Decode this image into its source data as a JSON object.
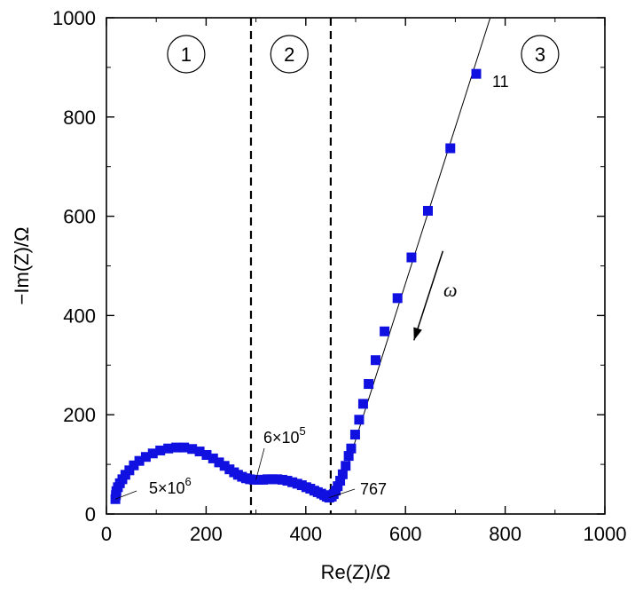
{
  "chart_data": {
    "type": "scatter",
    "xlabel": "Re(Z)/Ω",
    "ylabel": "−Im(Z)/Ω",
    "xlim": [
      0,
      1000
    ],
    "ylim": [
      0,
      1000
    ],
    "xticks": [
      0,
      200,
      400,
      600,
      800,
      1000
    ],
    "yticks": [
      0,
      200,
      400,
      600,
      800,
      1000
    ],
    "grid": false,
    "marker_color": "#1010e0",
    "series": [
      {
        "values": [
          [
            18,
            30
          ],
          [
            19,
            38
          ],
          [
            20,
            46
          ],
          [
            23,
            54
          ],
          [
            27,
            62
          ],
          [
            32,
            70
          ],
          [
            38,
            79
          ],
          [
            46,
            88
          ],
          [
            55,
            98
          ],
          [
            66,
            107
          ],
          [
            79,
            115
          ],
          [
            93,
            122
          ],
          [
            108,
            128
          ],
          [
            124,
            132
          ],
          [
            140,
            134
          ],
          [
            156,
            134
          ],
          [
            172,
            131
          ],
          [
            187,
            126
          ],
          [
            201,
            119
          ],
          [
            214,
            112
          ],
          [
            226,
            104
          ],
          [
            237,
            97
          ],
          [
            247,
            90
          ],
          [
            256,
            84
          ],
          [
            264,
            79
          ],
          [
            272,
            75
          ],
          [
            280,
            72
          ],
          [
            288,
            70
          ],
          [
            296,
            69
          ],
          [
            305,
            69
          ],
          [
            314,
            69
          ],
          [
            323,
            70
          ],
          [
            333,
            70
          ],
          [
            343,
            70
          ],
          [
            353,
            69
          ],
          [
            363,
            67
          ],
          [
            373,
            64
          ],
          [
            383,
            61
          ],
          [
            392,
            58
          ],
          [
            401,
            54
          ],
          [
            409,
            51
          ],
          [
            417,
            47
          ],
          [
            424,
            44
          ],
          [
            431,
            41
          ],
          [
            437,
            38
          ],
          [
            442,
            35
          ],
          [
            447,
            33
          ],
          [
            452,
            35
          ],
          [
            456,
            40
          ],
          [
            460,
            47
          ],
          [
            464,
            56
          ],
          [
            469,
            67
          ],
          [
            474,
            80
          ],
          [
            480,
            97
          ],
          [
            486,
            117
          ],
          [
            491,
            132
          ],
          [
            499,
            160
          ],
          [
            507,
            190
          ],
          [
            515,
            222
          ],
          [
            526,
            262
          ],
          [
            540,
            310
          ],
          [
            558,
            368
          ],
          [
            584,
            435
          ],
          [
            612,
            517
          ],
          [
            645,
            611
          ],
          [
            690,
            737
          ],
          [
            742,
            887
          ]
        ]
      }
    ],
    "fit_line": [
      [
        470,
        55
      ],
      [
        770,
        1000
      ]
    ],
    "dashed_verticals": [
      290,
      450
    ],
    "regions": [
      {
        "label": "1",
        "x": 160
      },
      {
        "label": "2",
        "x": 367
      },
      {
        "label": "3",
        "x": 870
      }
    ],
    "annotations": [
      {
        "base": "5×10",
        "exp": "6",
        "at": [
          18,
          30
        ]
      },
      {
        "base": "6×10",
        "exp": "5",
        "at": [
          300,
          69
        ]
      },
      {
        "base": "767",
        "exp": "",
        "at": [
          447,
          33
        ]
      },
      {
        "base": "11",
        "exp": "",
        "at": [
          742,
          887
        ]
      }
    ],
    "direction_arrow": {
      "symbol": "ω",
      "from": [
        675,
        530
      ],
      "to": [
        617,
        350
      ]
    }
  }
}
